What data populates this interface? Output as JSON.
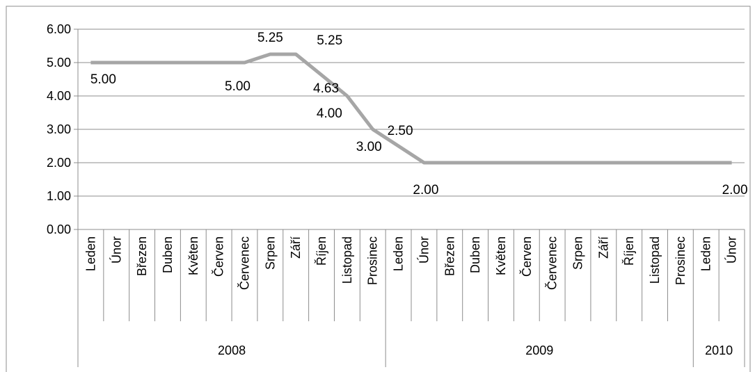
{
  "chart_data": {
    "type": "line",
    "title": "",
    "xlabel": "",
    "ylabel": "",
    "ylim": [
      0,
      6
    ],
    "yticks": [
      "0.00",
      "1.00",
      "2.00",
      "3.00",
      "4.00",
      "5.00",
      "6.00"
    ],
    "grid": true,
    "legend": "none",
    "line_color": "#a6a6a6",
    "categories": [
      "Leden",
      "Únor",
      "Březen",
      "Duben",
      "Květen",
      "Červen",
      "Červenec",
      "Srpen",
      "Září",
      "Říjen",
      "Listopad",
      "Prosinec",
      "Leden",
      "Únor",
      "Březen",
      "Duben",
      "Květen",
      "Červen",
      "Červenec",
      "Srpen",
      "Září",
      "Říjen",
      "Listopad",
      "Prosinec",
      "Leden",
      "Únor"
    ],
    "years": [
      {
        "label": "2008",
        "count": 12
      },
      {
        "label": "2009",
        "count": 12
      },
      {
        "label": "2010",
        "count": 2
      }
    ],
    "values": [
      5.0,
      5.0,
      5.0,
      5.0,
      5.0,
      5.0,
      5.0,
      5.25,
      5.25,
      4.63,
      4.0,
      3.0,
      2.5,
      2.0,
      2.0,
      2.0,
      2.0,
      2.0,
      2.0,
      2.0,
      2.0,
      2.0,
      2.0,
      2.0,
      2.0,
      2.0
    ],
    "data_labels": [
      {
        "index": 0,
        "text": "5.00"
      },
      {
        "index": 6,
        "text": "5.00"
      },
      {
        "index": 7,
        "text": "5.25"
      },
      {
        "index": 8,
        "text": "5.25"
      },
      {
        "index": 9,
        "text": "4.63"
      },
      {
        "index": 10,
        "text": "4.00"
      },
      {
        "index": 11,
        "text": "3.00"
      },
      {
        "index": 12,
        "text": "2.50"
      },
      {
        "index": 13,
        "text": "2.00"
      },
      {
        "index": 25,
        "text": "2.00"
      }
    ]
  }
}
